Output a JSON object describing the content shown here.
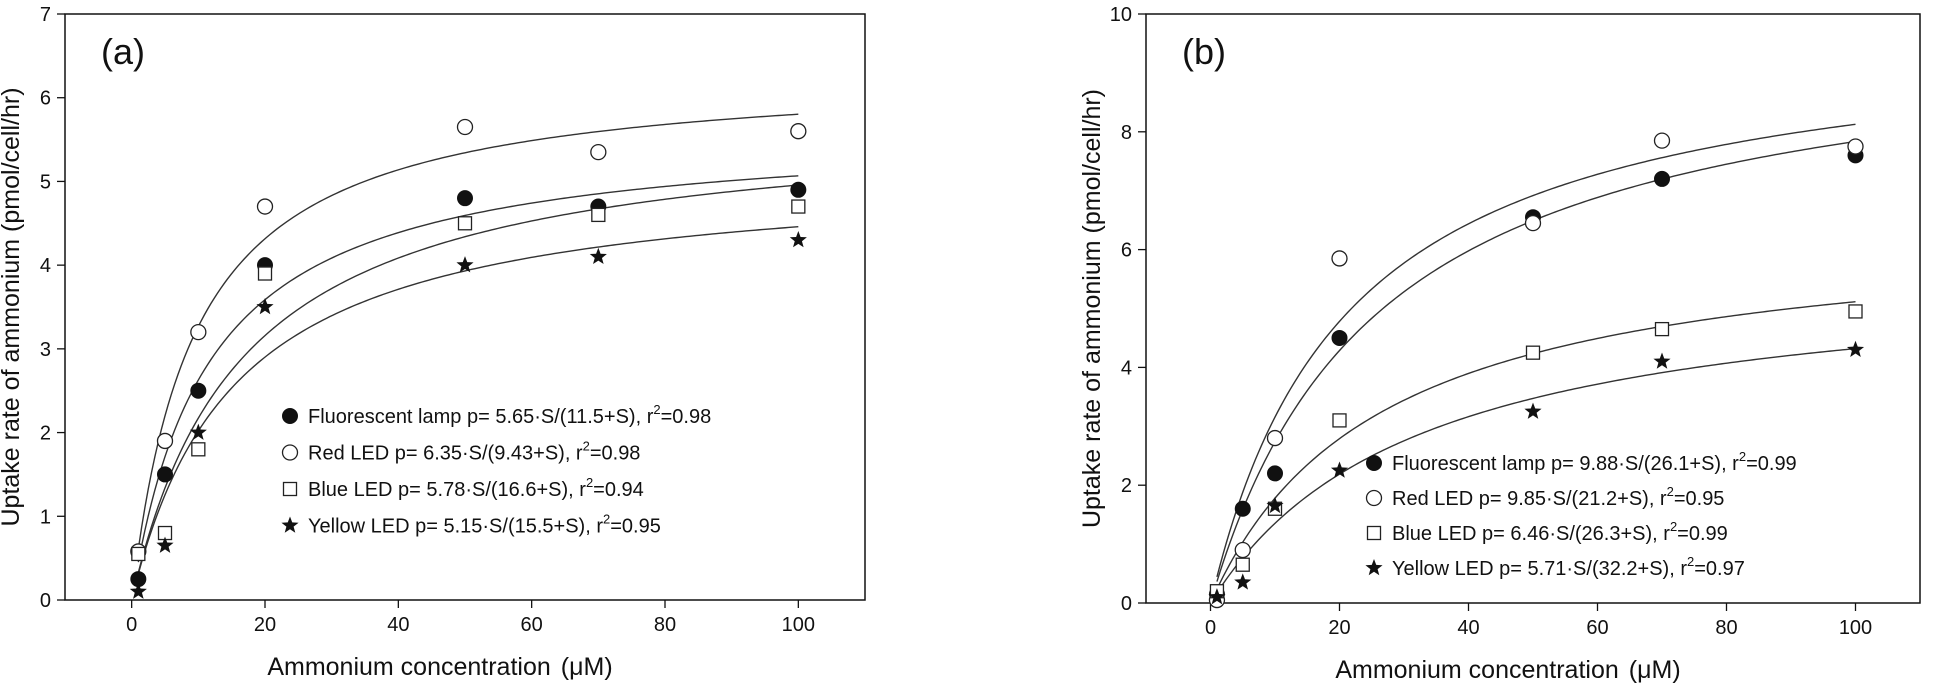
{
  "chart_data": [
    {
      "type": "scatter",
      "panel_label": "(a)",
      "xlabel": "Ammonium concentration",
      "xlabel_unit": "(μM)",
      "ylabel": "Uptake rate of ammonium (pmol/cell/hr)",
      "xlim": [
        -10,
        110
      ],
      "ylim": [
        0,
        7
      ],
      "xticks": [
        "0",
        "20",
        "40",
        "60",
        "80",
        "100"
      ],
      "yticks": [
        "0",
        "1",
        "2",
        "3",
        "4",
        "5",
        "6",
        "7"
      ],
      "legend_position": "bottom-right",
      "series": [
        {
          "name": "Fluorescent lamp",
          "marker": "filled-circle",
          "legend_label": "Fluorescent lamp p= 5.65·S/(11.5+S), r",
          "r2_text": "=0.98",
          "fit": {
            "vmax": 5.65,
            "k": 11.5
          },
          "x": [
            1,
            5,
            10,
            20,
            50,
            70,
            100
          ],
          "y": [
            0.25,
            1.5,
            2.5,
            4.0,
            4.8,
            4.7,
            4.9
          ]
        },
        {
          "name": "Red LED",
          "marker": "open-circle",
          "legend_label": "Red LED p= 6.35·S/(9.43+S), r",
          "r2_text": "=0.98",
          "fit": {
            "vmax": 6.35,
            "k": 9.43
          },
          "x": [
            1,
            5,
            10,
            20,
            50,
            70,
            100
          ],
          "y": [
            0.58,
            1.9,
            3.2,
            4.7,
            5.65,
            5.35,
            5.6
          ]
        },
        {
          "name": "Blue LED",
          "marker": "open-square",
          "legend_label": "Blue LED p= 5.78·S/(16.6+S), r",
          "r2_text": "=0.94",
          "fit": {
            "vmax": 5.78,
            "k": 16.6
          },
          "x": [
            1,
            5,
            10,
            20,
            50,
            70,
            100
          ],
          "y": [
            0.55,
            0.8,
            1.8,
            3.9,
            4.5,
            4.6,
            4.7
          ]
        },
        {
          "name": "Yellow LED",
          "marker": "star",
          "legend_label": "Yellow LED p= 5.15·S/(15.5+S), r",
          "r2_text": "=0.95",
          "fit": {
            "vmax": 5.15,
            "k": 15.5
          },
          "x": [
            1,
            5,
            10,
            20,
            50,
            70,
            100
          ],
          "y": [
            0.1,
            0.65,
            2.0,
            3.5,
            4.0,
            4.1,
            4.3
          ]
        }
      ]
    },
    {
      "type": "scatter",
      "panel_label": "(b)",
      "xlabel": "Ammonium concentration",
      "xlabel_unit": "(μM)",
      "ylabel": "Uptake rate of ammonium (pmol/cell/hr)",
      "xlim": [
        -10,
        110
      ],
      "ylim": [
        0,
        10
      ],
      "xticks": [
        "0",
        "20",
        "40",
        "60",
        "80",
        "100"
      ],
      "yticks": [
        "0",
        "2",
        "4",
        "6",
        "8",
        "10"
      ],
      "legend_position": "bottom-right",
      "series": [
        {
          "name": "Fluorescent lamp",
          "marker": "filled-circle",
          "legend_label": "Fluorescent lamp p= 9.88·S/(26.1+S), r",
          "r2_text": "=0.99",
          "fit": {
            "vmax": 9.88,
            "k": 26.1
          },
          "x": [
            1,
            5,
            10,
            20,
            50,
            70,
            100
          ],
          "y": [
            0.15,
            1.6,
            2.2,
            4.5,
            6.55,
            7.2,
            7.6
          ]
        },
        {
          "name": "Red LED",
          "marker": "open-circle",
          "legend_label": "Red LED p= 9.85·S/(21.2+S), r",
          "r2_text": "=0.95",
          "fit": {
            "vmax": 9.85,
            "k": 21.2
          },
          "x": [
            1,
            5,
            10,
            20,
            50,
            70,
            100
          ],
          "y": [
            0.05,
            0.9,
            2.8,
            5.85,
            6.45,
            7.85,
            7.75
          ]
        },
        {
          "name": "Blue LED",
          "marker": "open-square",
          "legend_label": "Blue LED p= 6.46·S/(26.3+S), r",
          "r2_text": "=0.99",
          "fit": {
            "vmax": 6.46,
            "k": 26.3
          },
          "x": [
            1,
            5,
            10,
            20,
            50,
            70,
            100
          ],
          "y": [
            0.2,
            0.65,
            1.6,
            3.1,
            4.25,
            4.65,
            4.95
          ]
        },
        {
          "name": "Yellow LED",
          "marker": "star",
          "legend_label": "Yellow LED p= 5.71·S/(32.2+S), r",
          "r2_text": "=0.97",
          "fit": {
            "vmax": 5.71,
            "k": 32.2
          },
          "x": [
            1,
            5,
            10,
            20,
            50,
            70,
            100
          ],
          "y": [
            0.1,
            0.35,
            1.65,
            2.25,
            3.25,
            4.1,
            4.3
          ]
        }
      ]
    }
  ]
}
